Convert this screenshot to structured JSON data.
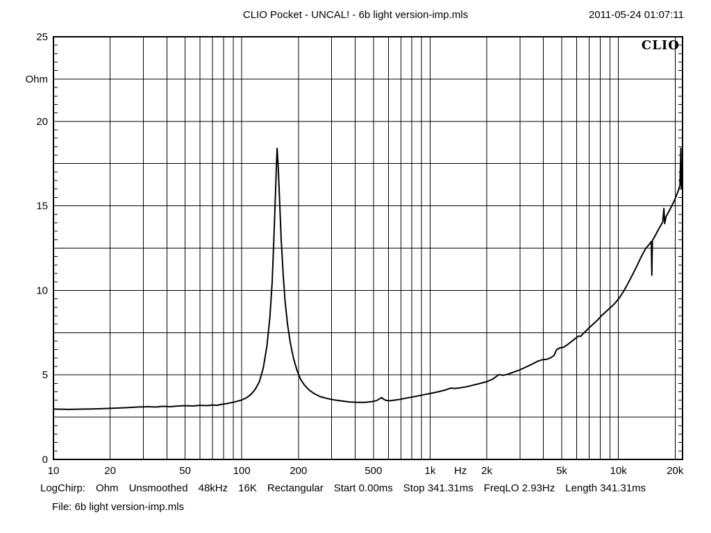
{
  "header": {
    "title": "CLIO Pocket - UNCAL! - 6b light version-imp.mls",
    "timestamp": "2011-05-24 01:07:11"
  },
  "logo": "CLIO",
  "status_bar": {
    "segments": [
      "LogChirp:",
      "Ohm",
      "Unsmoothed",
      "48kHz",
      "16K",
      "Rectangular",
      "Start 0.00ms",
      "Stop 341.31ms",
      "FreqLO 2.93Hz",
      "Length 341.31ms"
    ]
  },
  "file_line": "File: 6b light version-imp.mls",
  "chart_data": {
    "type": "line",
    "title": "CLIO Pocket - UNCAL! - 6b light version-imp.mls",
    "xlabel": "Hz",
    "ylabel": "Ohm",
    "x_scale": "log",
    "y_scale": "linear",
    "xlim": [
      10,
      21900
    ],
    "ylim": [
      0,
      25
    ],
    "grid": {
      "vertical": "log-decades",
      "horizontal_step": 2.5,
      "color": "#000000"
    },
    "y_tick_minor_step": 0.5,
    "x_ticks": [
      {
        "value": 10,
        "label": "10"
      },
      {
        "value": 20,
        "label": "20"
      },
      {
        "value": 50,
        "label": "50"
      },
      {
        "value": 100,
        "label": "100"
      },
      {
        "value": 200,
        "label": "200"
      },
      {
        "value": 500,
        "label": "500"
      },
      {
        "value": 1000,
        "label": "1k"
      },
      {
        "value": 2000,
        "label": "2k"
      },
      {
        "value": 5000,
        "label": "5k"
      },
      {
        "value": 10000,
        "label": "10k"
      },
      {
        "value": 20000,
        "label": "20k"
      }
    ],
    "x_unit": {
      "label": "Hz",
      "at": 1450
    },
    "y_ticks": [
      {
        "value": 0,
        "label": "0"
      },
      {
        "value": 5,
        "label": "5"
      },
      {
        "value": 10,
        "label": "10"
      },
      {
        "value": 15,
        "label": "15"
      },
      {
        "value": 20,
        "label": "20"
      },
      {
        "value": 25,
        "label": "25"
      }
    ],
    "y_unit": {
      "label": "Ohm",
      "at": 22.5
    },
    "line_color": "#000000",
    "series": [
      {
        "name": "impedance-magnitude",
        "resonance_peak": {
          "freq": 154,
          "ohm": 18.4
        },
        "points": [
          [
            10,
            2.98
          ],
          [
            12,
            2.96
          ],
          [
            15,
            2.98
          ],
          [
            18,
            3.0
          ],
          [
            20,
            3.02
          ],
          [
            24,
            3.06
          ],
          [
            28,
            3.1
          ],
          [
            32,
            3.12
          ],
          [
            35,
            3.1
          ],
          [
            38,
            3.14
          ],
          [
            42,
            3.12
          ],
          [
            46,
            3.16
          ],
          [
            50,
            3.18
          ],
          [
            55,
            3.16
          ],
          [
            60,
            3.2
          ],
          [
            65,
            3.18
          ],
          [
            70,
            3.22
          ],
          [
            74,
            3.2
          ],
          [
            78,
            3.26
          ],
          [
            83,
            3.3
          ],
          [
            88,
            3.36
          ],
          [
            93,
            3.42
          ],
          [
            100,
            3.52
          ],
          [
            106,
            3.65
          ],
          [
            112,
            3.85
          ],
          [
            118,
            4.15
          ],
          [
            124,
            4.6
          ],
          [
            130,
            5.4
          ],
          [
            136,
            6.7
          ],
          [
            141,
            8.4
          ],
          [
            145,
            10.5
          ],
          [
            148,
            13.0
          ],
          [
            151,
            15.8
          ],
          [
            153,
            17.6
          ],
          [
            154,
            18.4
          ],
          [
            156,
            17.4
          ],
          [
            159,
            15.2
          ],
          [
            162,
            13.0
          ],
          [
            166,
            10.9
          ],
          [
            170,
            9.3
          ],
          [
            175,
            8.0
          ],
          [
            181,
            6.9
          ],
          [
            188,
            6.0
          ],
          [
            196,
            5.3
          ],
          [
            205,
            4.75
          ],
          [
            215,
            4.4
          ],
          [
            228,
            4.1
          ],
          [
            242,
            3.9
          ],
          [
            260,
            3.72
          ],
          [
            285,
            3.6
          ],
          [
            310,
            3.52
          ],
          [
            340,
            3.46
          ],
          [
            375,
            3.4
          ],
          [
            410,
            3.38
          ],
          [
            450,
            3.38
          ],
          [
            490,
            3.42
          ],
          [
            520,
            3.48
          ],
          [
            541,
            3.6
          ],
          [
            552,
            3.66
          ],
          [
            563,
            3.58
          ],
          [
            580,
            3.5
          ],
          [
            605,
            3.47
          ],
          [
            640,
            3.5
          ],
          [
            680,
            3.54
          ],
          [
            725,
            3.6
          ],
          [
            775,
            3.66
          ],
          [
            830,
            3.72
          ],
          [
            890,
            3.79
          ],
          [
            950,
            3.85
          ],
          [
            1020,
            3.92
          ],
          [
            1100,
            4.0
          ],
          [
            1200,
            4.1
          ],
          [
            1290,
            4.22
          ],
          [
            1360,
            4.2
          ],
          [
            1450,
            4.24
          ],
          [
            1560,
            4.3
          ],
          [
            1700,
            4.4
          ],
          [
            1850,
            4.5
          ],
          [
            2000,
            4.6
          ],
          [
            2150,
            4.75
          ],
          [
            2320,
            5.02
          ],
          [
            2450,
            4.98
          ],
          [
            2600,
            5.05
          ],
          [
            2800,
            5.18
          ],
          [
            3000,
            5.3
          ],
          [
            3250,
            5.48
          ],
          [
            3500,
            5.65
          ],
          [
            3750,
            5.82
          ],
          [
            3950,
            5.9
          ],
          [
            4150,
            5.92
          ],
          [
            4350,
            6.0
          ],
          [
            4550,
            6.15
          ],
          [
            4700,
            6.5
          ],
          [
            4900,
            6.6
          ],
          [
            5100,
            6.63
          ],
          [
            5350,
            6.78
          ],
          [
            5600,
            6.95
          ],
          [
            5900,
            7.15
          ],
          [
            6150,
            7.3
          ],
          [
            6300,
            7.28
          ],
          [
            6550,
            7.48
          ],
          [
            6900,
            7.72
          ],
          [
            7300,
            7.98
          ],
          [
            7700,
            8.22
          ],
          [
            8100,
            8.48
          ],
          [
            8600,
            8.75
          ],
          [
            9100,
            9.0
          ],
          [
            9600,
            9.25
          ],
          [
            10100,
            9.55
          ],
          [
            10600,
            9.9
          ],
          [
            11100,
            10.3
          ],
          [
            11600,
            10.7
          ],
          [
            12100,
            11.1
          ],
          [
            12600,
            11.5
          ],
          [
            13100,
            11.9
          ],
          [
            13600,
            12.25
          ],
          [
            14000,
            12.5
          ],
          [
            14400,
            12.65
          ],
          [
            14700,
            12.78
          ],
          [
            14950,
            12.88
          ],
          [
            15050,
            10.9
          ],
          [
            15150,
            12.95
          ],
          [
            15400,
            13.08
          ],
          [
            15800,
            13.3
          ],
          [
            16300,
            13.6
          ],
          [
            16800,
            13.85
          ],
          [
            17200,
            14.05
          ],
          [
            17450,
            14.85
          ],
          [
            17600,
            13.95
          ],
          [
            17900,
            14.35
          ],
          [
            18300,
            14.55
          ],
          [
            18800,
            14.8
          ],
          [
            19300,
            15.05
          ],
          [
            19800,
            15.3
          ],
          [
            20300,
            15.6
          ],
          [
            20800,
            15.9
          ],
          [
            21200,
            16.2
          ],
          [
            21450,
            18.4
          ],
          [
            21600,
            16.0
          ],
          [
            21900,
            16.2
          ]
        ]
      }
    ]
  }
}
